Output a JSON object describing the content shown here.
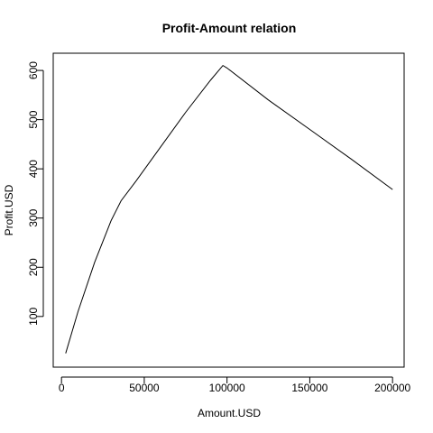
{
  "chart_data": {
    "type": "line",
    "title": "Profit-Amount relation",
    "xlabel": "Amount.USD",
    "ylabel": "Profit.USD",
    "xlim": [
      -5000,
      207000
    ],
    "ylim": [
      -3,
      635
    ],
    "xticks": [
      0,
      50000,
      100000,
      150000,
      200000
    ],
    "xtick_labels": [
      "0",
      "50000",
      "100000",
      "150000",
      "200000"
    ],
    "yticks": [
      100,
      200,
      300,
      400,
      500,
      600
    ],
    "ytick_labels": [
      "100",
      "200",
      "300",
      "400",
      "500",
      "600"
    ],
    "grid": false,
    "series": [
      {
        "x": [
          2500,
          10000,
          20000,
          30000,
          36000,
          45000,
          60000,
          75000,
          90000,
          97500,
          100000,
          125000,
          150000,
          175000,
          200000
        ],
        "y": [
          25,
          110,
          210,
          295,
          335,
          375,
          445,
          515,
          580,
          610,
          605,
          540,
          480,
          420,
          358
        ]
      }
    ],
    "line_color": "#000000"
  }
}
